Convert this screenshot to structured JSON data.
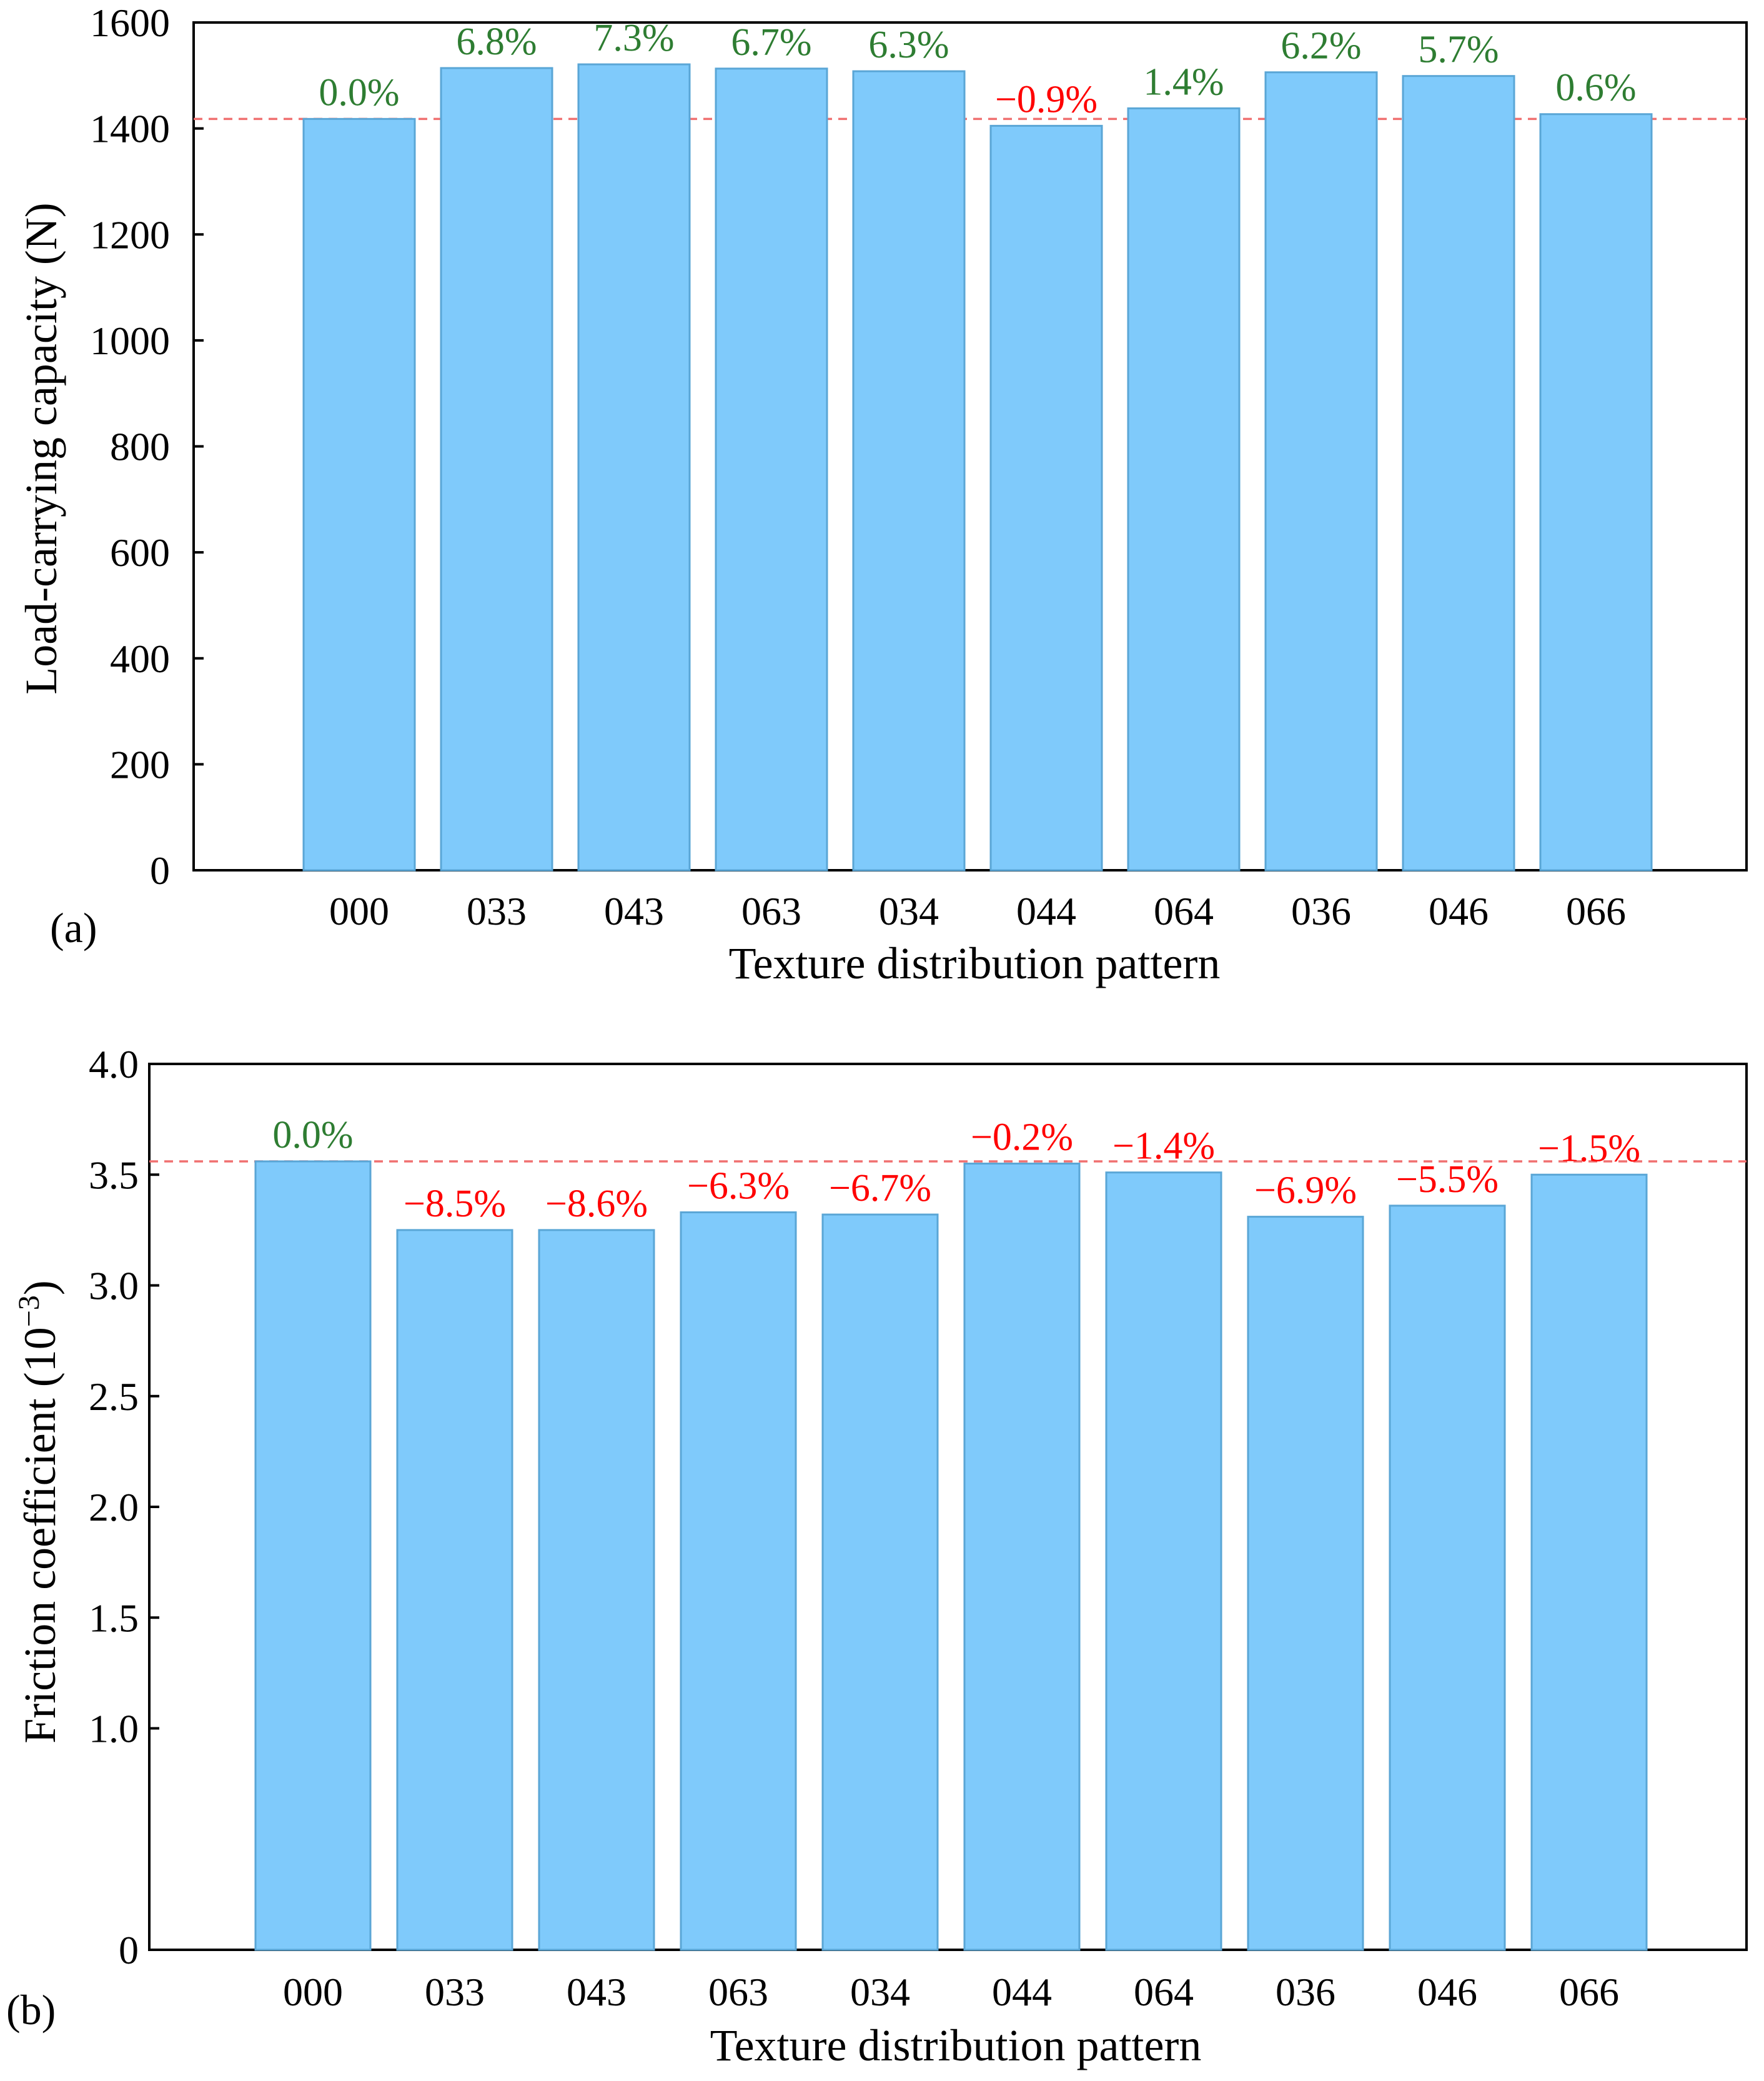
{
  "chart_data": [
    {
      "type": "bar",
      "panel_label": "(a)",
      "categories": [
        "000",
        "033",
        "043",
        "063",
        "034",
        "044",
        "064",
        "036",
        "046",
        "066"
      ],
      "values": [
        1418,
        1514,
        1521,
        1513,
        1508,
        1405,
        1438,
        1506,
        1499,
        1427
      ],
      "data_labels": [
        "0.0%",
        "6.8%",
        "7.3%",
        "6.7%",
        "6.3%",
        "−0.9%",
        "1.4%",
        "6.2%",
        "5.7%",
        "0.6%"
      ],
      "label_colors": [
        "#2e7d32",
        "#2e7d32",
        "#2e7d32",
        "#2e7d32",
        "#2e7d32",
        "#ff0000",
        "#2e7d32",
        "#2e7d32",
        "#2e7d32",
        "#2e7d32"
      ],
      "reference_value": 1418,
      "ylim": [
        0,
        1600
      ],
      "yticks": [
        0,
        200,
        400,
        600,
        800,
        1000,
        1200,
        1400,
        1600
      ],
      "ytick_labels": [
        "0",
        "200",
        "400",
        "600",
        "800",
        "1000",
        "1200",
        "1400",
        "1600"
      ],
      "xlabel": "Texture distribution pattern",
      "ylabel": "Load-carrying capacity (N)",
      "bar_color": "#7fcafb",
      "reference_color": "#f07070"
    },
    {
      "type": "bar",
      "panel_label": "(b)",
      "categories": [
        "000",
        "033",
        "043",
        "063",
        "034",
        "044",
        "064",
        "036",
        "046",
        "066"
      ],
      "values": [
        3.56,
        3.25,
        3.25,
        3.33,
        3.32,
        3.55,
        3.51,
        3.31,
        3.36,
        3.5
      ],
      "data_labels": [
        "0.0%",
        "−8.5%",
        "−8.6%",
        "−6.3%",
        "−6.7%",
        "−0.2%",
        "−1.4%",
        "−6.9%",
        "−5.5%",
        "−1.5%"
      ],
      "label_colors": [
        "#2e7d32",
        "#ff0000",
        "#ff0000",
        "#ff0000",
        "#ff0000",
        "#ff0000",
        "#ff0000",
        "#ff0000",
        "#ff0000",
        "#ff0000"
      ],
      "reference_value": 3.56,
      "ylim": [
        0,
        4.0
      ],
      "yticks": [
        0,
        1.0,
        1.5,
        2.0,
        2.5,
        3.0,
        3.5,
        4.0
      ],
      "ytick_labels": [
        "0",
        "1.0",
        "1.5",
        "2.0",
        "2.5",
        "3.0",
        "3.5",
        "4.0"
      ],
      "xlabel": "Texture distribution pattern",
      "ylabel_main": "Friction coefficient (10",
      "ylabel_sup": "−3",
      "ylabel_end": ")",
      "bar_color": "#7fcafb",
      "reference_color": "#f07070"
    }
  ]
}
